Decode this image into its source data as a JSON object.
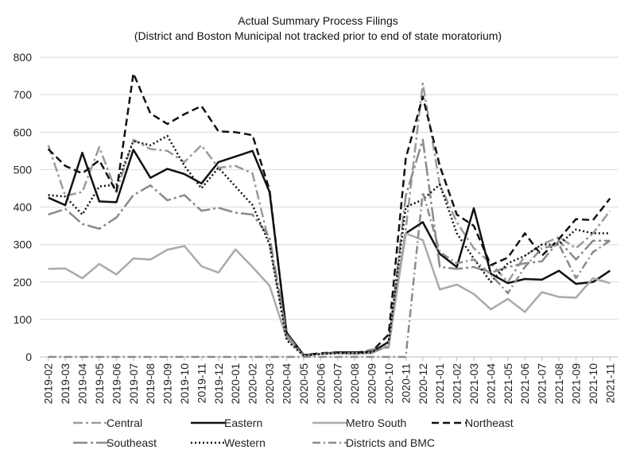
{
  "chart_data": {
    "type": "line",
    "title": "Actual Summary Process Filings",
    "subtitle": "(District and Boston Municipal not tracked prior to end of state moratorium)",
    "xlabel": "",
    "ylabel": "",
    "ylim": [
      0,
      800
    ],
    "yticks": [
      0,
      100,
      200,
      300,
      400,
      500,
      600,
      700,
      800
    ],
    "grid": "horizontal",
    "legend_position": "bottom",
    "categories": [
      "2019-02",
      "2019-03",
      "2019-04",
      "2019-05",
      "2019-06",
      "2019-07",
      "2019-08",
      "2019-09",
      "2019-10",
      "2019-11",
      "2019-12",
      "2020-01",
      "2020-02",
      "2020-03",
      "2020-04",
      "2020-05",
      "2020-06",
      "2020-07",
      "2020-08",
      "2020-09",
      "2020-10",
      "2020-11",
      "2020-12",
      "2021-01",
      "2021-02",
      "2021-03",
      "2021-04",
      "2021-05",
      "2021-06",
      "2021-07",
      "2021-08",
      "2021-09",
      "2021-10",
      "2021-11"
    ],
    "series": [
      {
        "name": "Central",
        "color": "#9a9a9a",
        "dash": "12,4,3,4",
        "width": 2.5,
        "values": [
          565,
          430,
          440,
          560,
          440,
          580,
          555,
          550,
          520,
          565,
          505,
          510,
          490,
          300,
          55,
          5,
          8,
          10,
          10,
          20,
          25,
          340,
          730,
          460,
          360,
          290,
          250,
          200,
          270,
          300,
          320,
          290,
          330,
          390
        ]
      },
      {
        "name": "Eastern",
        "color": "#111111",
        "dash": "",
        "width": 2.5,
        "values": [
          425,
          405,
          545,
          415,
          413,
          553,
          478,
          502,
          488,
          463,
          520,
          535,
          550,
          440,
          65,
          5,
          8,
          12,
          12,
          12,
          40,
          330,
          360,
          275,
          240,
          397,
          222,
          197,
          208,
          206,
          230,
          195,
          200,
          230
        ]
      },
      {
        "name": "Metro South",
        "color": "#aaaaaa",
        "dash": "",
        "width": 2.5,
        "values": [
          235,
          236,
          210,
          248,
          220,
          263,
          260,
          286,
          296,
          242,
          225,
          287,
          240,
          190,
          50,
          3,
          8,
          10,
          8,
          10,
          30,
          330,
          312,
          180,
          193,
          168,
          127,
          155,
          120,
          173,
          160,
          158,
          210,
          197
        ]
      },
      {
        "name": "Northeast",
        "color": "#111111",
        "dash": "9,5",
        "width": 2.5,
        "values": [
          555,
          510,
          490,
          525,
          440,
          757,
          650,
          622,
          648,
          670,
          602,
          600,
          592,
          445,
          60,
          5,
          10,
          12,
          12,
          14,
          60,
          530,
          695,
          510,
          380,
          350,
          245,
          265,
          330,
          270,
          315,
          368,
          365,
          423
        ]
      },
      {
        "name": "Southeast",
        "color": "#8a8a8a",
        "dash": "18,4,3,4",
        "width": 2.5,
        "values": [
          380,
          395,
          355,
          342,
          372,
          432,
          458,
          418,
          432,
          390,
          398,
          385,
          380,
          320,
          60,
          3,
          8,
          10,
          10,
          12,
          30,
          430,
          580,
          240,
          235,
          240,
          225,
          240,
          250,
          255,
          310,
          260,
          310,
          310
        ]
      },
      {
        "name": "Western",
        "color": "#111111",
        "dash": "2,3",
        "width": 2.5,
        "values": [
          432,
          428,
          380,
          455,
          460,
          576,
          565,
          590,
          510,
          450,
          505,
          455,
          405,
          300,
          45,
          3,
          8,
          10,
          10,
          12,
          40,
          400,
          420,
          460,
          330,
          262,
          200,
          250,
          270,
          300,
          300,
          340,
          330,
          330
        ]
      },
      {
        "name": "Districts and BMC",
        "color": "#8a8a8a",
        "dash": "10,4,2,4",
        "width": 2.5,
        "values": [
          0,
          0,
          0,
          0,
          0,
          0,
          0,
          0,
          0,
          0,
          0,
          0,
          0,
          0,
          0,
          0,
          0,
          0,
          0,
          0,
          0,
          0,
          440,
          280,
          250,
          260,
          220,
          170,
          240,
          290,
          300,
          210,
          280,
          310
        ]
      }
    ]
  }
}
